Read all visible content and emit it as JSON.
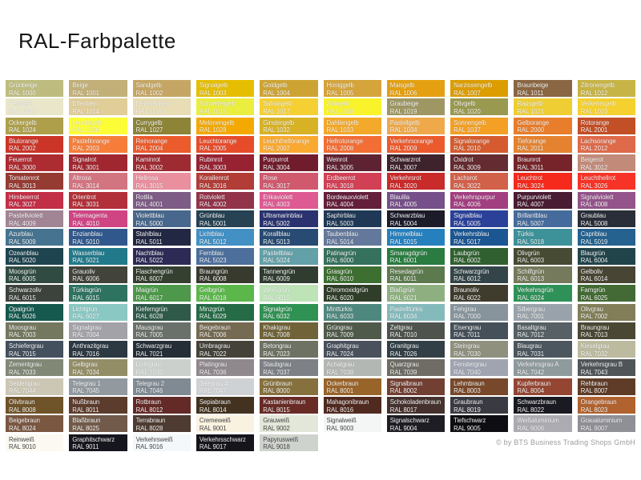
{
  "header": {
    "title": "RAL-Farbpalette"
  },
  "footer": {
    "copyright": "© by BTS Business Trading Shops GmbH"
  },
  "dark_label_rals": [
    "RAL 9001",
    "RAL 9002",
    "RAL 9003",
    "RAL 9010",
    "RAL 9016",
    "RAL 9018"
  ],
  "chart_data": {
    "type": "table",
    "title": "RAL-Farbpalette",
    "columns": [
      "name",
      "ral_code",
      "hex_color"
    ],
    "rows": [
      [
        "Grünbeige",
        "RAL 1000",
        "#BEBD7F"
      ],
      [
        "Beige",
        "RAL 1001",
        "#C2B078"
      ],
      [
        "Sandgelb",
        "RAL 1002",
        "#C6A664"
      ],
      [
        "Signalgelb",
        "RAL 1003",
        "#E5BE01"
      ],
      [
        "Goldgelb",
        "RAL 1004",
        "#CDA434"
      ],
      [
        "Honiggelb",
        "RAL 1005",
        "#D5A43B"
      ],
      [
        "Maisgelb",
        "RAL 1006",
        "#E4A010"
      ],
      [
        "Narzissengelb",
        "RAL 1007",
        "#DC9D00"
      ],
      [
        "Braunbeige",
        "RAL 1011",
        "#8A6642"
      ],
      [
        "Zitronengelb",
        "RAL 1012",
        "#C7B446"
      ],
      [
        "Perlweiß",
        "RAL 1013",
        "#EAE6CA"
      ],
      [
        "Elfenbein",
        "RAL 1014",
        "#E0CD97"
      ],
      [
        "Hellelfenbein",
        "RAL 1015",
        "#E8DDB4"
      ],
      [
        "Schwefelgelb",
        "RAL 1016",
        "#EBEE3F"
      ],
      [
        "Safrangelb",
        "RAL 1017",
        "#F5D033"
      ],
      [
        "Zinkgelb",
        "RAL 1018",
        "#F8F32B"
      ],
      [
        "Graubeige",
        "RAL 1019",
        "#9E9764"
      ],
      [
        "Olivgelb",
        "RAL 1020",
        "#999950"
      ],
      [
        "Rapsgelb",
        "RAL 1021",
        "#EFCE33"
      ],
      [
        "Verkehrsgelb",
        "RAL 1023",
        "#F5D130"
      ],
      [
        "Ockergelb",
        "RAL 1024",
        "#AEA04B"
      ],
      [
        "Leuchtgelb",
        "RAL 1026",
        "#FDFD37"
      ],
      [
        "Currygelb",
        "RAL 1027",
        "#8D8438"
      ],
      [
        "Melonengelb",
        "RAL 1028",
        "#F4A900"
      ],
      [
        "Ginstergelb",
        "RAL 1032",
        "#D8B225"
      ],
      [
        "Dahliengelb",
        "RAL 1033",
        "#F3A929"
      ],
      [
        "Pastellgelb",
        "RAL 1034",
        "#EFA94A"
      ],
      [
        "Sonnengelb",
        "RAL 1037",
        "#F3A025"
      ],
      [
        "Gelborange",
        "RAL 2000",
        "#E87D2B"
      ],
      [
        "Rotorange",
        "RAL 2001",
        "#C34F26"
      ],
      [
        "Blutorange",
        "RAL 2002",
        "#CB3528"
      ],
      [
        "Pastellorange",
        "RAL 2003",
        "#F67E3A"
      ],
      [
        "Reinorange",
        "RAL 2004",
        "#EB5B2C"
      ],
      [
        "Leuchtorange",
        "RAL 2005",
        "#E74C2A"
      ],
      [
        "Leuchthellorange",
        "RAL 2007",
        "#FAA930"
      ],
      [
        "Hellrotorange",
        "RAL 2008",
        "#F26E35"
      ],
      [
        "Verkehrsorange",
        "RAL 2009",
        "#EB5A2D"
      ],
      [
        "Signalorange",
        "RAL 2010",
        "#D55B2E"
      ],
      [
        "Tieforange",
        "RAL 2011",
        "#E5822F"
      ],
      [
        "Lachsorange",
        "RAL 2012",
        "#DE6A4A"
      ],
      [
        "Feuerrot",
        "RAL 3000",
        "#AD2C32"
      ],
      [
        "Signalrot",
        "RAL 3001",
        "#A02730"
      ],
      [
        "Kaminrot",
        "RAL 3002",
        "#9E2A32"
      ],
      [
        "Rubinrot",
        "RAL 3003",
        "#962232"
      ],
      [
        "Purpurrot",
        "RAL 3004",
        "#701C2D"
      ],
      [
        "Weinrot",
        "RAL 3005",
        "#5E2333"
      ],
      [
        "Schwarzrot",
        "RAL 3007",
        "#3E222C"
      ],
      [
        "Oxidrot",
        "RAL 3009",
        "#642B30"
      ],
      [
        "Braunrot",
        "RAL 3011",
        "#76242A"
      ],
      [
        "Beigerot",
        "RAL 3012",
        "#C28B79"
      ],
      [
        "Tomatenrot",
        "RAL 3013",
        "#963B32"
      ],
      [
        "Altrosa",
        "RAL 3014",
        "#D37580"
      ],
      [
        "Hellrosa",
        "RAL 3015",
        "#EA8F9E"
      ],
      [
        "Korallenrot",
        "RAL 3016",
        "#B23C36"
      ],
      [
        "Rose",
        "RAL 3017",
        "#D0596E"
      ],
      [
        "Erdbeerrot",
        "RAL 3018",
        "#D24055"
      ],
      [
        "Verkehrsrot",
        "RAL 3020",
        "#C92A2A"
      ],
      [
        "Lachsrot",
        "RAL 3022",
        "#D2614A"
      ],
      [
        "Leuchtrot",
        "RAL 3024",
        "#F52A1C"
      ],
      [
        "Leuchthellrot",
        "RAL 3026",
        "#F63326"
      ],
      [
        "Himbeerrot",
        "RAL 3027",
        "#C22F46"
      ],
      [
        "Orientrot",
        "RAL 3031",
        "#B23039"
      ],
      [
        "Rotlila",
        "RAL 4001",
        "#7D5C85"
      ],
      [
        "Rotviolett",
        "RAL 4002",
        "#923349"
      ],
      [
        "Erikaviolett",
        "RAL 4003",
        "#DE5A92"
      ],
      [
        "Bordeauxviolett",
        "RAL 4004",
        "#641F3A"
      ],
      [
        "Blaulila",
        "RAL 4005",
        "#755089"
      ],
      [
        "Verkehrspurpur",
        "RAL 4006",
        "#A23F80"
      ],
      [
        "Purpurviolett",
        "RAL 4007",
        "#4A1C33"
      ],
      [
        "Signalviolett",
        "RAL 4008",
        "#94538A"
      ],
      [
        "Pastellviolett",
        "RAL 4009",
        "#A18594"
      ],
      [
        "Telemagenta",
        "RAL 4010",
        "#D04484"
      ],
      [
        "Violettblau",
        "RAL 5000",
        "#47678C"
      ],
      [
        "Grünblau",
        "RAL 5001",
        "#264253"
      ],
      [
        "Ultramarinblau",
        "RAL 5002",
        "#2A3370"
      ],
      [
        "Saphirblau",
        "RAL 5003",
        "#1F3855"
      ],
      [
        "Schwarzblau",
        "RAL 5004",
        "#1B1B2A"
      ],
      [
        "Signalblau",
        "RAL 5005",
        "#2B4199"
      ],
      [
        "Brillantblau",
        "RAL 5007",
        "#456B9C"
      ],
      [
        "Graublau",
        "RAL 5008",
        "#2A2E38"
      ],
      [
        "Azurblau",
        "RAL 5009",
        "#46738F"
      ],
      [
        "Enzianblau",
        "RAL 5010",
        "#30588C"
      ],
      [
        "Stahlblau",
        "RAL 5011",
        "#222843"
      ],
      [
        "Lichtblau",
        "RAL 5012",
        "#4290C4"
      ],
      [
        "Korallblau",
        "RAL 5013",
        "#274B73"
      ],
      [
        "Taubenblau",
        "RAL 5014",
        "#64789B"
      ],
      [
        "Himmelblau",
        "RAL 5015",
        "#2780BE"
      ],
      [
        "Verkehrsblau",
        "RAL 5017",
        "#1B5693"
      ],
      [
        "Türkis",
        "RAL 5018",
        "#3D9199"
      ],
      [
        "Capriblau",
        "RAL 5019",
        "#25628F"
      ],
      [
        "Ozeanblau",
        "RAL 5020",
        "#1E4450"
      ],
      [
        "Wasserblau",
        "RAL 5021",
        "#21798A"
      ],
      [
        "Nachtblau",
        "RAL 5022",
        "#2D2A55"
      ],
      [
        "Fernblau",
        "RAL 5023",
        "#4C6F9B"
      ],
      [
        "Pastellblau",
        "RAL 5024",
        "#63A0A8"
      ],
      [
        "Patinagrün",
        "RAL 6000",
        "#36715D"
      ],
      [
        "Smaragdgrün",
        "RAL 6001",
        "#2A7C40"
      ],
      [
        "Laubgrün",
        "RAL 6002",
        "#306030"
      ],
      [
        "Olivgrün",
        "RAL 6003",
        "#474B33"
      ],
      [
        "Blaugrün",
        "RAL 6004",
        "#21444A"
      ],
      [
        "Moosgrün",
        "RAL 6005",
        "#304C42"
      ],
      [
        "Grauoliv",
        "RAL 6006",
        "#42433A"
      ],
      [
        "Flaschengrün",
        "RAL 6007",
        "#354031"
      ],
      [
        "Braungrün",
        "RAL 6008",
        "#393A2E"
      ],
      [
        "Tannengrün",
        "RAL 6009",
        "#303C30"
      ],
      [
        "Grasgrün",
        "RAL 6010",
        "#3E6F32"
      ],
      [
        "Resedagrün",
        "RAL 6011",
        "#5D7A4E"
      ],
      [
        "Schwarzgrün",
        "RAL 6012",
        "#344549"
      ],
      [
        "Schilfgrün",
        "RAL 6013",
        "#757A5C"
      ],
      [
        "Gelboliv",
        "RAL 6014",
        "#494534"
      ],
      [
        "Schwarzoliv",
        "RAL 6015",
        "#3C423C"
      ],
      [
        "Türkisgrün",
        "RAL 6015",
        "#2E7360"
      ],
      [
        "Maigrün",
        "RAL 6017",
        "#4D984A"
      ],
      [
        "Gelbgrün",
        "RAL 6018",
        "#5CB74B"
      ],
      [
        "Weißgrün",
        "RAL 6019",
        "#BDE3B6"
      ],
      [
        "Chromoxidgrün",
        "RAL 6020",
        "#303E29"
      ],
      [
        "Blaßgrün",
        "RAL 6021",
        "#8EB080"
      ],
      [
        "Braunoliv",
        "RAL 6022",
        "#3F3B2D"
      ],
      [
        "Verkehrsgrün",
        "RAL 6024",
        "#2E9158"
      ],
      [
        "Farngrün",
        "RAL 6025",
        "#436A34"
      ],
      [
        "Opalgrün",
        "RAL 6026",
        "#15594E"
      ],
      [
        "Lichtgrün",
        "RAL 6027",
        "#89C8C3"
      ],
      [
        "Kieferngrün",
        "RAL 6028",
        "#2F5A4A"
      ],
      [
        "Minzgrün",
        "RAL 6029",
        "#256B46"
      ],
      [
        "Signalgrün",
        "RAL 6032",
        "#2F9152"
      ],
      [
        "Minttürkis",
        "RAL 6033",
        "#4E877E"
      ],
      [
        "Pastelltürkis",
        "RAL 6034",
        "#85BABC"
      ],
      [
        "Fehgrau",
        "RAL 7000",
        "#87949C"
      ],
      [
        "Silbergrau",
        "RAL 7001",
        "#9AA3AB"
      ],
      [
        "Olivgrau",
        "RAL 7002",
        "#817E58"
      ],
      [
        "Moosgrau",
        "RAL 7003",
        "#74785F"
      ],
      [
        "Signalgrau",
        "RAL 7004",
        "#A2A2A8"
      ],
      [
        "Mausgrau",
        "RAL 7005",
        "#6A706A"
      ],
      [
        "Beigebraun",
        "RAL 7006",
        "#756A52"
      ],
      [
        "Khakigrau",
        "RAL 7008",
        "#706338"
      ],
      [
        "Grüngrau",
        "RAL 7009",
        "#505A4A"
      ],
      [
        "Zeltgrau",
        "RAL 7010",
        "#4E544D"
      ],
      [
        "Eisengrau",
        "RAL 7011",
        "#455058"
      ],
      [
        "Basaltgrau",
        "RAL 7012",
        "#566065"
      ],
      [
        "Braungrau",
        "RAL 7013",
        "#4A4834"
      ],
      [
        "Schiefergrau",
        "RAL 7015",
        "#45505E"
      ],
      [
        "Anthrazitgrau",
        "RAL 7016",
        "#2C3842"
      ],
      [
        "Schwarzgrau",
        "RAL 7021",
        "#252E36"
      ],
      [
        "Umbragrau",
        "RAL 7022",
        "#45423A"
      ],
      [
        "Betongrau",
        "RAL 7023",
        "#6E7263"
      ],
      [
        "Graphitgrau",
        "RAL 7024",
        "#4A515D"
      ],
      [
        "Granitgrau",
        "RAL 7026",
        "#323F46"
      ],
      [
        "Steingrau",
        "RAL 7030",
        "#8F907E"
      ],
      [
        "Blaugrau",
        "RAL 7031",
        "#4B565E"
      ],
      [
        "Kieselgrau",
        "RAL 7032",
        "#BCBA9F"
      ],
      [
        "Zementgrau",
        "RAL 7033",
        "#818876"
      ],
      [
        "Gelbgrau",
        "RAL 7034",
        "#938E66"
      ],
      [
        "Lichtgrau",
        "RAL 7035",
        "#CBD0CC"
      ],
      [
        "Platingrau",
        "RAL 7036",
        "#8F888D"
      ],
      [
        "Staubgrau",
        "RAL 7037",
        "#7D8085"
      ],
      [
        "Achatgrau",
        "RAL 7038",
        "#B3B7B4"
      ],
      [
        "Quarzgrau",
        "RAL 7039",
        "#6E6C64"
      ],
      [
        "Fenstergrau",
        "RAL 7040",
        "#9FA4B0"
      ],
      [
        "Verkehrsgrau A",
        "RAL 7042",
        "#8F9A9D"
      ],
      [
        "Verkehrsgrau B",
        "RAL 7043",
        "#505658"
      ],
      [
        "Seidengrau",
        "RAL 7044",
        "#CCC6B4"
      ],
      [
        "Telegrau 1",
        "RAL 7045",
        "#929AA0"
      ],
      [
        "Telegrau 2",
        "RAL 7046",
        "#808A92"
      ],
      [
        "Telegrau 4",
        "RAL 7047",
        "#CFD2D4"
      ],
      [
        "Grünbraun",
        "RAL 8000",
        "#86713E"
      ],
      [
        "Ockerbraun",
        "RAL 8001",
        "#99642A"
      ],
      [
        "Signalbraun",
        "RAL 8002",
        "#724033"
      ],
      [
        "Lehmbraun",
        "RAL 8003",
        "#78482A"
      ],
      [
        "Kupferbraun",
        "RAL 8004",
        "#944633"
      ],
      [
        "Rehbraun",
        "RAL 8007",
        "#5F3C28"
      ],
      [
        "Olivbraun",
        "RAL 8008",
        "#6F5329"
      ],
      [
        "Nußbraun",
        "RAL 8011",
        "#5C3C2C"
      ],
      [
        "Rotbraun",
        "RAL 8012",
        "#632A27"
      ],
      [
        "Sepiabraun",
        "RAL 8014",
        "#42321F"
      ],
      [
        "Kastanienbraun",
        "RAL 8015",
        "#682B26"
      ],
      [
        "Mahagonibraun",
        "RAL 8016",
        "#50291F"
      ],
      [
        "Schokoladenbraun",
        "RAL 8017",
        "#45322E"
      ],
      [
        "Graubraun",
        "RAL 8019",
        "#3A3A42"
      ],
      [
        "Schwarzbraun",
        "RAL 8022",
        "#1A1A22"
      ],
      [
        "Orangebraun",
        "RAL 8023",
        "#B0622F"
      ],
      [
        "Beigebraun",
        "RAL 8024",
        "#7A5741"
      ],
      [
        "Blaßbraun",
        "RAL 8025",
        "#725A4A"
      ],
      [
        "Terrabraun",
        "RAL 8028",
        "#4E3B31"
      ],
      [
        "Cremeweiß",
        "RAL 9001",
        "#FAF2E0"
      ],
      [
        "Grauweiß",
        "RAL 9002",
        "#E3E7DA"
      ],
      [
        "Signalweiß",
        "RAL 9003",
        "#F3F6F5"
      ],
      [
        "Signalschwarz",
        "RAL 9004",
        "#1D1D23"
      ],
      [
        "Tiefschwarz",
        "RAL 9005",
        "#0E0E12"
      ],
      [
        "Weißaluminium",
        "RAL 9006",
        "#ABABB1"
      ],
      [
        "Graualuminium",
        "RAL 9007",
        "#8F8F96"
      ],
      [
        "Reinweiß",
        "RAL 9010",
        "#FBF9F1"
      ],
      [
        "Graphitschwarz",
        "RAL 9011",
        "#16161E"
      ],
      [
        "Verkehrsweiß",
        "RAL 9016",
        "#F4F8FA"
      ],
      [
        "Verkehrsschwarz",
        "RAL 9017",
        "#15151B"
      ],
      [
        "Papyrusweiß",
        "RAL 9018",
        "#CFD3CD"
      ]
    ]
  }
}
